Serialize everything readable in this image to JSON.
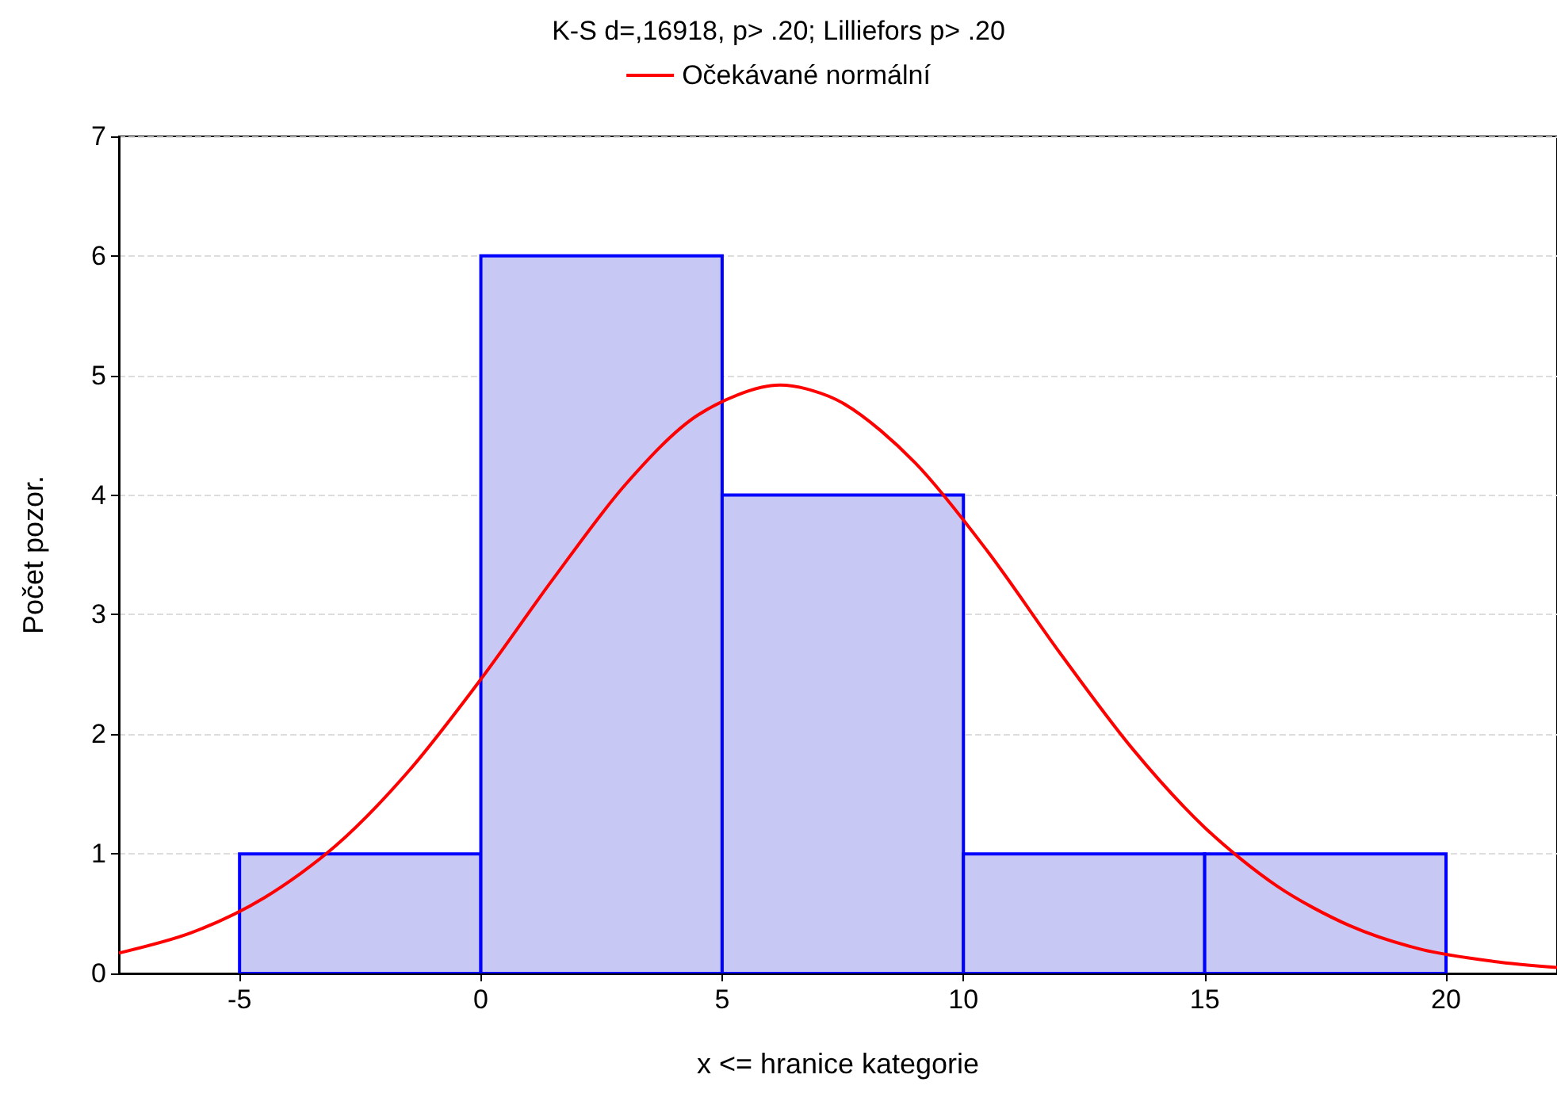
{
  "chart_data": {
    "type": "histogram",
    "title": "K-S d=,16918, p> .20; Lilliefors p> .20",
    "xlabel": "x <= hranice kategorie",
    "ylabel": "Počet pozor.",
    "bins": [
      -5,
      0,
      5,
      10,
      15,
      20
    ],
    "series": [
      {
        "color": "#c8c8f4",
        "values": [
          1,
          6,
          4,
          1,
          1
        ]
      },
      {
        "type": "line",
        "name": "Očekávané normální",
        "color": "#ff0000",
        "x": [
          -7.5,
          -6,
          -4.5,
          -3,
          -1.5,
          0,
          1.5,
          3,
          4.5,
          6.2,
          7.5,
          9,
          10.5,
          12,
          13.5,
          15,
          16.5,
          18,
          19.5,
          21,
          22.3
        ],
        "values": [
          0.17,
          0.34,
          0.63,
          1.07,
          1.69,
          2.46,
          3.3,
          4.09,
          4.67,
          4.92,
          4.77,
          4.27,
          3.53,
          2.68,
          1.88,
          1.22,
          0.73,
          0.4,
          0.2,
          0.1,
          0.05
        ]
      }
    ],
    "xlim": [
      -7.5,
      22.3
    ],
    "xticks": [
      -5,
      0,
      5,
      10,
      15,
      20
    ],
    "ylim": [
      0,
      7
    ],
    "yticks": [
      0,
      1,
      2,
      3,
      4,
      5,
      6,
      7
    ],
    "grid": "y",
    "legend": "top",
    "marker": "none",
    "line_style": "solid"
  }
}
